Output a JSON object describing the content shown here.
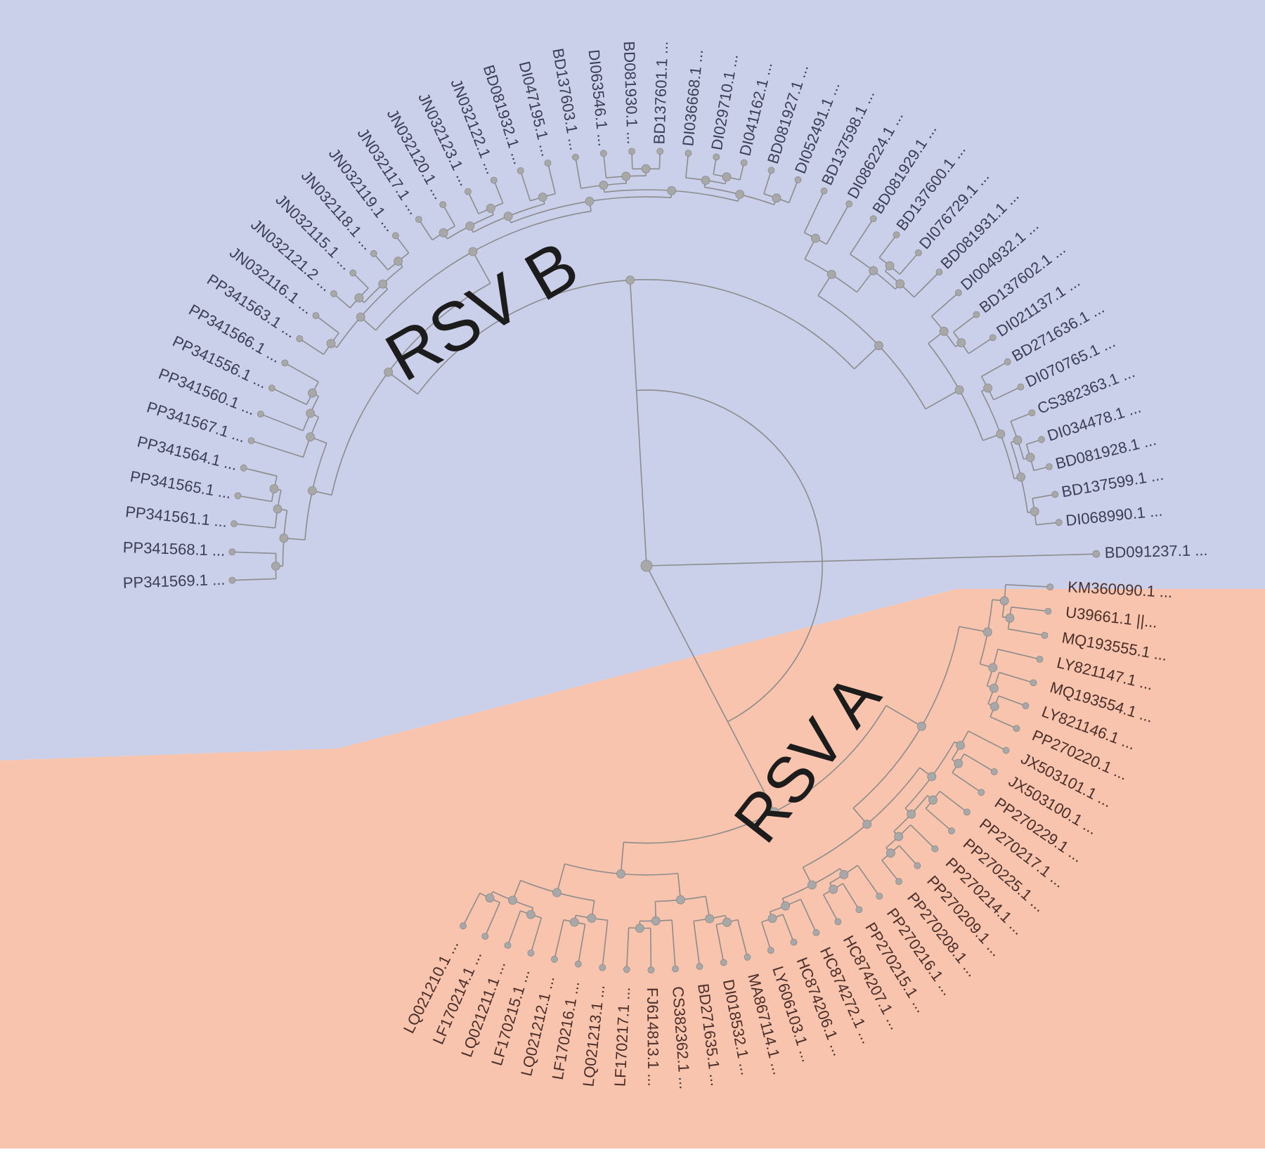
{
  "colors": {
    "rsv_b_region": "#cbd0ea",
    "rsv_a_region": "#f8c4ad",
    "branch": "#8c8c8c",
    "node": "#a8a8a8",
    "tip_label_b": "#3a3e55",
    "tip_label_a": "#4a2e2a",
    "clade_label": "#1c1c1c"
  },
  "clades": [
    {
      "label": "RSV B"
    },
    {
      "label": "RSV A"
    }
  ],
  "rsv_b_leaves": [
    "PP341569.1 ...",
    "PP341568.1 ...",
    "PP341561.1 ...",
    "PP341565.1 ...",
    "PP341564.1 ...",
    "PP341567.1 ...",
    "PP341560.1 ...",
    "PP341556.1 ...",
    "PP341566.1 ...",
    "PP341563.1 ...",
    "JN032116.1 ...",
    "JN032121.2 ...",
    "JN032115.1 ...",
    "JN032118.1 ...",
    "JN032119.1 ...",
    "JN032117.1 ...",
    "JN032120.1 ...",
    "JN032123.1 ...",
    "JN032122.1 ...",
    "BD081932.1 ...",
    "DI047195.1 ...",
    "BD137603.1 ...",
    "DI063546.1 ...",
    "BD081930.1 ...",
    "BD137601.1 ...",
    "DI036668.1 ...",
    "DI029710.1 ...",
    "DI041162.1 ...",
    "BD081927.1 ...",
    "DI052491.1 ...",
    "BD137598.1 ...",
    "DI086224.1 ...",
    "BD081929.1 ...",
    "BD137600.1 ...",
    "DI076729.1 ...",
    "BD081931.1 ...",
    "DI004932.1 ...",
    "BD137602.1 ...",
    "DI021137.1 ...",
    "BD271636.1 ...",
    "DI070765.1 ...",
    "CS382363.1 ...",
    "DI034478.1 ...",
    "BD081928.1 ...",
    "BD137599.1 ...",
    "DI068990.1 ...",
    "BD091237.1 ..."
  ],
  "rsv_a_leaves": [
    "KM360090.1 ...",
    "U39661.1 ||...",
    "MQ193555.1 ...",
    "LY821147.1 ...",
    "MQ193554.1 ...",
    "LY821146.1 ...",
    "PP270220.1 ...",
    "JX503101.1 ...",
    "JX503100.1 ...",
    "PP270229.1 ...",
    "PP270217.1 ...",
    "PP270225.1 ...",
    "PP270214.1 ...",
    "PP270209.1 ...",
    "PP270208.1 ...",
    "PP270216.1 ...",
    "PP270215.1 ...",
    "HC874207.1 ...",
    "HC874272.1 ...",
    "HC874206.1 ...",
    "LY606103.1 ...",
    "MA867114.1 ...",
    "DI018532.1 ...",
    "BD271635.1 ...",
    "CS382362.1 ...",
    "FJ614813.1 ...",
    "LF170217.1 ...",
    "LQ021213.1 ...",
    "LF170216.1 ...",
    "LQ021212.1 ...",
    "LF170215.1 ...",
    "LQ021211.1 ...",
    "LF170214.1 ...",
    "LQ021210.1 ..."
  ]
}
